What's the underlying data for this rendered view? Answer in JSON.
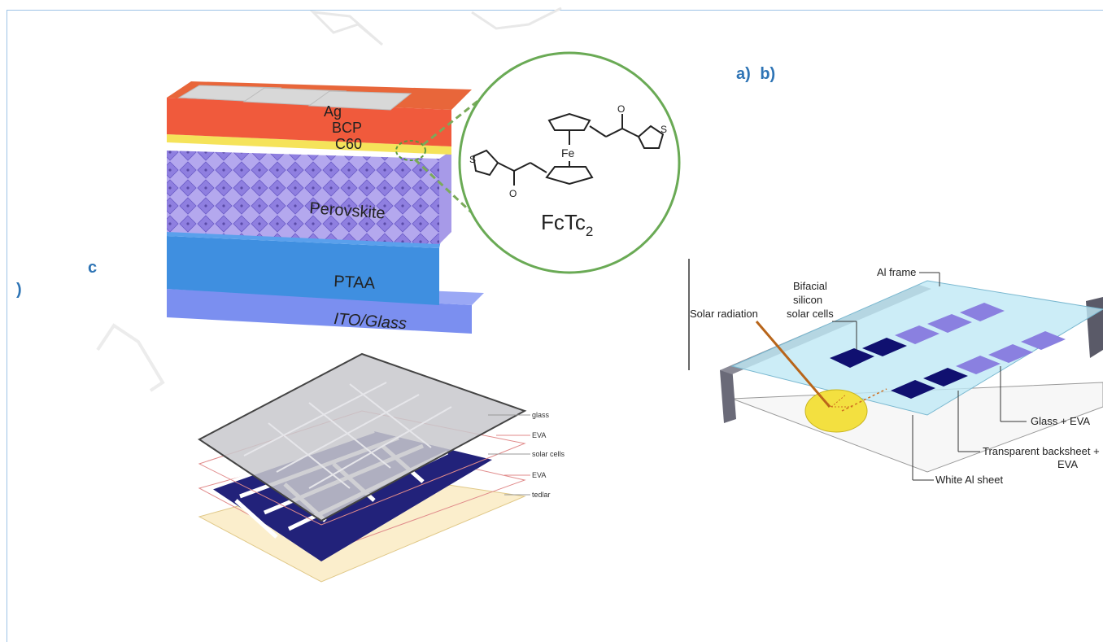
{
  "panel_labels": {
    "ab": "a)  b)",
    "c_letter": "c",
    "c_paren": ")"
  },
  "perovskite": {
    "layers": [
      "Ag",
      "BCP",
      "C60",
      "Perovskite",
      "PTAA",
      "ITO/Glass"
    ],
    "molecule_label": "FcTc",
    "molecule_subscript": "2",
    "fe_label": "Fe",
    "s_label": "S",
    "o_label": "O"
  },
  "module_stack": {
    "layers": [
      "glass",
      "EVA",
      "solar cells",
      "EVA",
      "tedlar"
    ]
  },
  "bifacial": {
    "labels": {
      "al_frame": "Al frame",
      "bifacial_line1": "Bifacial",
      "bifacial_line2": "silicon",
      "bifacial_line3": "solar cells",
      "solar_radiation": "Solar radiation",
      "glass_eva": "Glass + EVA",
      "transparent_line1": "Transparent backsheet +",
      "transparent_line2": "EVA",
      "white_al": "White Al sheet"
    }
  },
  "colors": {
    "accent_label": "#2e74b5",
    "ag": "#d8d8d8",
    "bcp": "#f05a3c",
    "c60": "#f5e35a",
    "perovskite": "#9d8ee6",
    "ptaa": "#3f8fe0",
    "ito": "#7b8ff0",
    "cell_dark": "#101070"
  }
}
